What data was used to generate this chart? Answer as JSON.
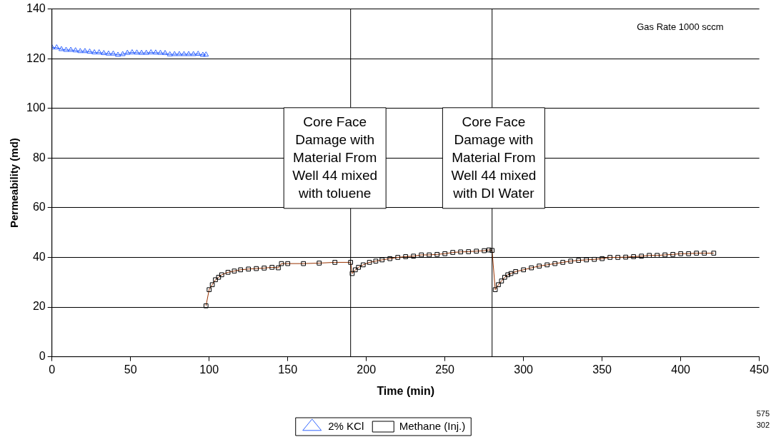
{
  "chart_data": {
    "type": "line",
    "xlabel": "Time (min)",
    "ylabel": "Permeability (md)",
    "xlim": [
      0,
      450
    ],
    "xticks": [
      0,
      50,
      100,
      150,
      200,
      250,
      300,
      350,
      400,
      450
    ],
    "ylim": [
      0,
      140
    ],
    "yticks": [
      0,
      20,
      40,
      60,
      80,
      100,
      120,
      140
    ],
    "grid": "y",
    "legend": "bottom",
    "series": [
      {
        "name": "2% KCl",
        "color": "#3366ff",
        "marker": "triangle",
        "x": [
          0,
          3,
          6,
          9,
          12,
          15,
          18,
          21,
          24,
          27,
          30,
          33,
          36,
          39,
          42,
          45,
          48,
          51,
          54,
          57,
          60,
          63,
          66,
          69,
          72,
          75,
          78,
          81,
          84,
          87,
          90,
          93,
          96,
          98
        ],
        "values": [
          124.5,
          124.5,
          123.8,
          123.5,
          123.5,
          123.3,
          123,
          123,
          122.8,
          122.5,
          122.5,
          122.2,
          122,
          122,
          121.5,
          121.8,
          122.3,
          122.5,
          122.4,
          122.3,
          122.3,
          122.5,
          122.4,
          122.3,
          122.2,
          121.7,
          121.8,
          121.8,
          121.8,
          121.8,
          121.8,
          121.9,
          121.5,
          121.6
        ]
      },
      {
        "name": "Methane (Inj.)",
        "color": "#993300",
        "marker": "square",
        "x": [
          98,
          100,
          102,
          104,
          106,
          108,
          112,
          116,
          120,
          125,
          130,
          135,
          140,
          144,
          146,
          150,
          160,
          170,
          180,
          190,
          191,
          193,
          195,
          198,
          202,
          206,
          210,
          215,
          220,
          225,
          230,
          235,
          240,
          245,
          250,
          255,
          260,
          265,
          270,
          275,
          278,
          280,
          282,
          284,
          286,
          288,
          290,
          292,
          295,
          300,
          305,
          310,
          315,
          320,
          325,
          330,
          335,
          340,
          345,
          350,
          355,
          360,
          365,
          370,
          375,
          380,
          385,
          390,
          395,
          400,
          405,
          410,
          415,
          421
        ],
        "values": [
          20.5,
          27,
          29,
          31,
          32,
          33,
          34,
          34.5,
          35,
          35.3,
          35.5,
          35.7,
          36,
          35.8,
          37.5,
          37.5,
          37.5,
          37.7,
          38,
          38,
          33.5,
          35,
          36,
          37,
          38,
          38.5,
          39,
          39.5,
          40,
          40.3,
          40.5,
          41,
          41,
          41.2,
          41.5,
          42,
          42.2,
          42.3,
          42.5,
          42.7,
          43,
          42.8,
          27,
          29,
          30.5,
          32,
          33,
          33.5,
          34.3,
          35,
          35.8,
          36.5,
          37,
          37.5,
          38,
          38.5,
          38.8,
          39,
          39.2,
          39.5,
          40,
          40,
          40.1,
          40.3,
          40.5,
          40.8,
          40.8,
          41,
          41.2,
          41.5,
          41.5,
          41.7,
          41.7,
          41.7
        ]
      }
    ],
    "ref_lines": [
      {
        "axis": "x",
        "value": 190,
        "color": "#000000"
      },
      {
        "axis": "x",
        "value": 280,
        "color": "#000000"
      }
    ],
    "annotations": [
      "Gas Rate 1000 sccm",
      "Core Face\nDamage with\nMaterial From\nWell 44 mixed\nwith toluene",
      "Core Face\nDamage with\nMaterial From\nWell 44 mixed\nwith DI Water",
      "575",
      "302"
    ]
  }
}
